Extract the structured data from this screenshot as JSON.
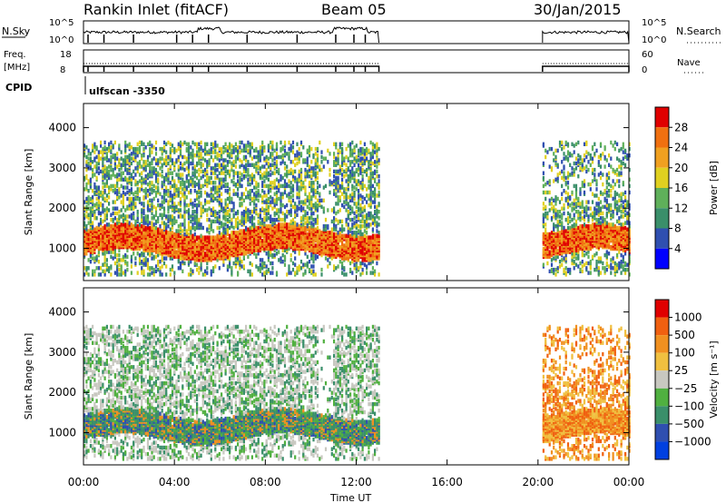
{
  "header": {
    "station": "Rankin Inlet (fitACF)",
    "beam": "Beam 05",
    "date": "30/Jan/2015"
  },
  "aux_panels": {
    "nsky_label": "N.Sky",
    "nsearch_label": "N.Search",
    "nsky_ticks": [
      "10^5",
      "10^0"
    ],
    "nsearch_ticks": [
      "10^5",
      "10^0"
    ],
    "freq_label_top": "Freq.",
    "freq_label_bottom": "[MHz]",
    "freq_ticks": [
      "18",
      "8"
    ],
    "nave_label": "Nave",
    "nave_ticks": [
      "60",
      "0"
    ],
    "cpid_label": "CPID",
    "cpid_text": "ulfscan -3350"
  },
  "colors": {
    "power_scale": [
      "#0000ff",
      "#2f4fb0",
      "#3a8f6a",
      "#5fb05a",
      "#e0d020",
      "#f0a020",
      "#f07010",
      "#e00000"
    ],
    "velocity_scale": [
      "#e00000",
      "#f06010",
      "#f09020",
      "#f0c040",
      "#c8c8c0",
      "#50b040",
      "#3a8f6a",
      "#2f4fb0",
      "#0040e0"
    ]
  },
  "chart_data": [
    {
      "type": "heatmap",
      "name": "power-panel",
      "ylabel": "Slant Range [km]",
      "xlabel": "Time UT",
      "x_ticks": [
        "00:00",
        "04:00",
        "08:00",
        "12:00",
        "16:00",
        "20:00",
        "00:00"
      ],
      "y_ticks": [
        "1000",
        "2000",
        "3000",
        "4000"
      ],
      "ylim": [
        200,
        4600
      ],
      "colorbar_label": "Power [dB]",
      "colorbar_ticks": [
        "4",
        "8",
        "12",
        "16",
        "20",
        "24",
        "28"
      ],
      "data_coverage_hours": [
        [
          0,
          13
        ],
        [
          20.2,
          24
        ]
      ]
    },
    {
      "type": "heatmap",
      "name": "velocity-panel",
      "ylabel": "Slant Range [km]",
      "xlabel": "Time UT",
      "x_ticks": [
        "00:00",
        "04:00",
        "08:00",
        "12:00",
        "16:00",
        "20:00",
        "00:00"
      ],
      "y_ticks": [
        "1000",
        "2000",
        "3000",
        "4000"
      ],
      "ylim": [
        200,
        4600
      ],
      "colorbar_label": "Velocity [m s⁻¹]",
      "colorbar_ticks": [
        "1000",
        "500",
        "100",
        "25",
        "−25",
        "−100",
        "−500",
        "−1000"
      ],
      "data_coverage_hours": [
        [
          0,
          13
        ],
        [
          20.2,
          24
        ]
      ]
    }
  ],
  "axis": {
    "xlabel": "Time UT",
    "x_ticks": [
      "00:00",
      "04:00",
      "08:00",
      "12:00",
      "16:00",
      "20:00",
      "00:00"
    ]
  }
}
